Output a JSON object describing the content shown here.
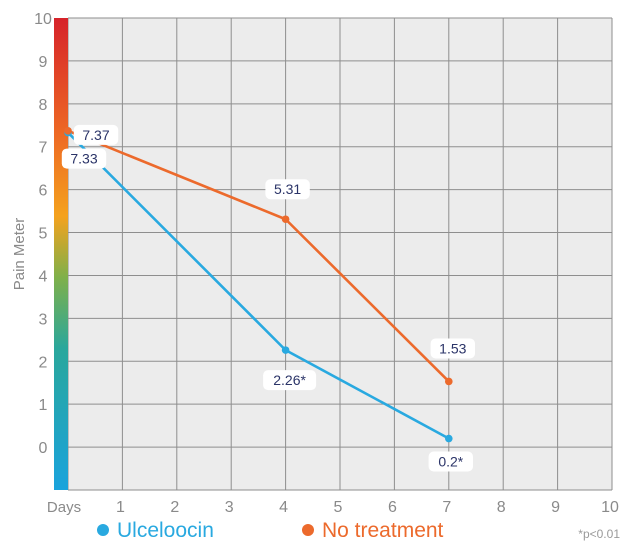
{
  "chart_data": {
    "type": "line",
    "ylabel": "Pain Meter",
    "x_axis_start_label": "Days",
    "x_ticks": [
      1,
      2,
      3,
      4,
      5,
      6,
      7,
      8,
      9,
      10
    ],
    "y_ticks": [
      0,
      1,
      2,
      3,
      4,
      5,
      6,
      7,
      8,
      9,
      10
    ],
    "xlim": [
      0,
      10
    ],
    "ylim": [
      -1,
      10
    ],
    "grid": true,
    "legend_position": "bottom",
    "footnote": "*p<0.01",
    "series": [
      {
        "name": "Ulceloocin",
        "color": "#29a9e0",
        "points": [
          {
            "x": 0,
            "y": 7.33,
            "label": "7.33"
          },
          {
            "x": 4,
            "y": 2.26,
            "label": "2.26*"
          },
          {
            "x": 7,
            "y": 0.2,
            "label": "0.2*"
          }
        ]
      },
      {
        "name": "No treatment",
        "color": "#ec6a2c",
        "points": [
          {
            "x": 0,
            "y": 7.37,
            "label": "7.37"
          },
          {
            "x": 4,
            "y": 5.31,
            "label": "5.31"
          },
          {
            "x": 7,
            "y": 1.53,
            "label": "1.53"
          }
        ]
      }
    ],
    "pain_scale_colors": [
      "#1aa3dc",
      "#2aa79c",
      "#7fb04a",
      "#f4a21e",
      "#ee6a24",
      "#d6232a"
    ]
  }
}
